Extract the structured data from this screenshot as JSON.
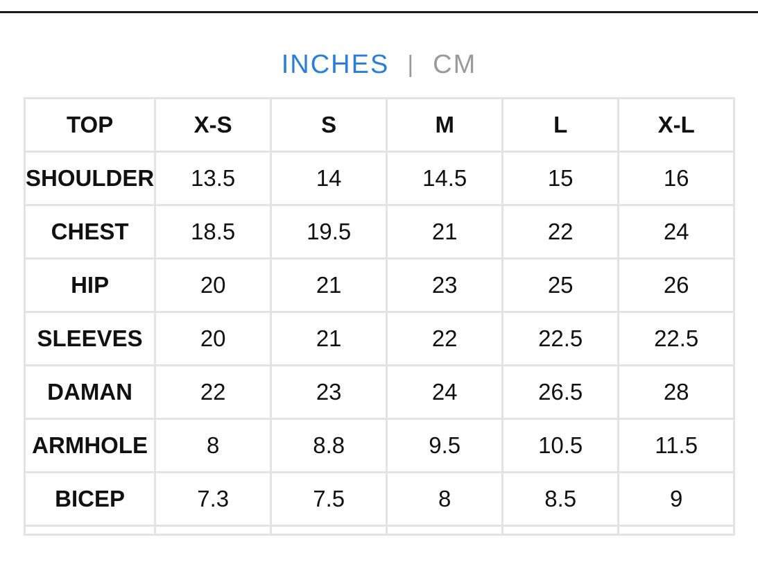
{
  "units": {
    "active": "INCHES",
    "separator": "|",
    "inactive": "CM"
  },
  "table": {
    "header": [
      "TOP",
      "X-S",
      "S",
      "M",
      "L",
      "X-L"
    ],
    "rows": [
      {
        "label": "SHOULDER",
        "values": [
          "13.5",
          "14",
          "14.5",
          "15",
          "16"
        ]
      },
      {
        "label": "CHEST",
        "values": [
          "18.5",
          "19.5",
          "21",
          "22",
          "24"
        ]
      },
      {
        "label": "HIP",
        "values": [
          "20",
          "21",
          "23",
          "25",
          "26"
        ]
      },
      {
        "label": "SLEEVES",
        "values": [
          "20",
          "21",
          "22",
          "22.5",
          "22.5"
        ]
      },
      {
        "label": "DAMAN",
        "values": [
          "22",
          "23",
          "24",
          "26.5",
          "28"
        ]
      },
      {
        "label": "ARMHOLE",
        "values": [
          "8",
          "8.8",
          "9.5",
          "10.5",
          "11.5"
        ]
      },
      {
        "label": "BICEP",
        "values": [
          "7.3",
          "7.5",
          "8",
          "8.5",
          "9"
        ]
      }
    ]
  },
  "colors": {
    "active_unit": "#2a7ed8",
    "inactive_unit": "#9a9a9a",
    "grid": "#e3e3e3",
    "text": "#111111"
  }
}
